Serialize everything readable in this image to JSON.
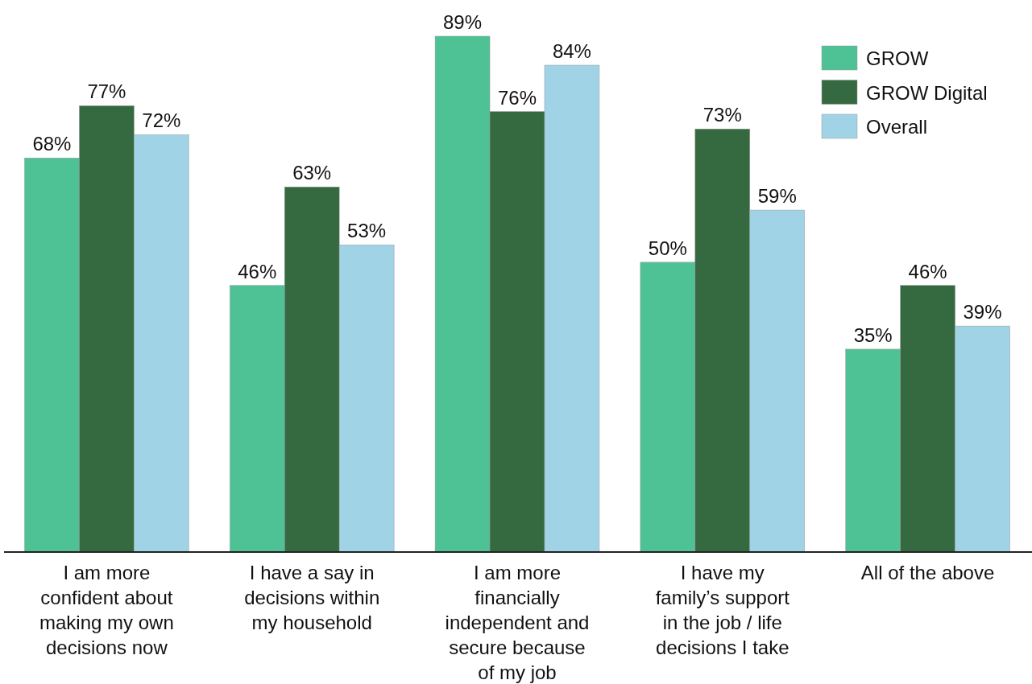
{
  "chart_data": {
    "type": "bar",
    "categories": [
      "I am more confident about making my own decisions now",
      "I have a say in decisions within my household",
      "I am more financially independent and secure because of my job",
      "I have my family’s support in the job / life decisions I take",
      "All of the above"
    ],
    "series": [
      {
        "name": "GROW",
        "color": "#4fc295",
        "values": [
          68,
          46,
          89,
          50,
          35
        ],
        "value_labels": [
          "68%",
          "46%",
          "89%",
          "50%",
          "35%"
        ]
      },
      {
        "name": "GROW Digital",
        "color": "#356a40",
        "values": [
          77,
          63,
          76,
          73,
          46
        ],
        "value_labels": [
          "77%",
          "63%",
          "76%",
          "73%",
          "46%"
        ]
      },
      {
        "name": "Overall",
        "color": "#a0d3e6",
        "values": [
          72,
          53,
          84,
          59,
          39
        ],
        "value_labels": [
          "72%",
          "53%",
          "84%",
          "59%",
          "39%"
        ]
      }
    ],
    "legend": "top right"
  }
}
